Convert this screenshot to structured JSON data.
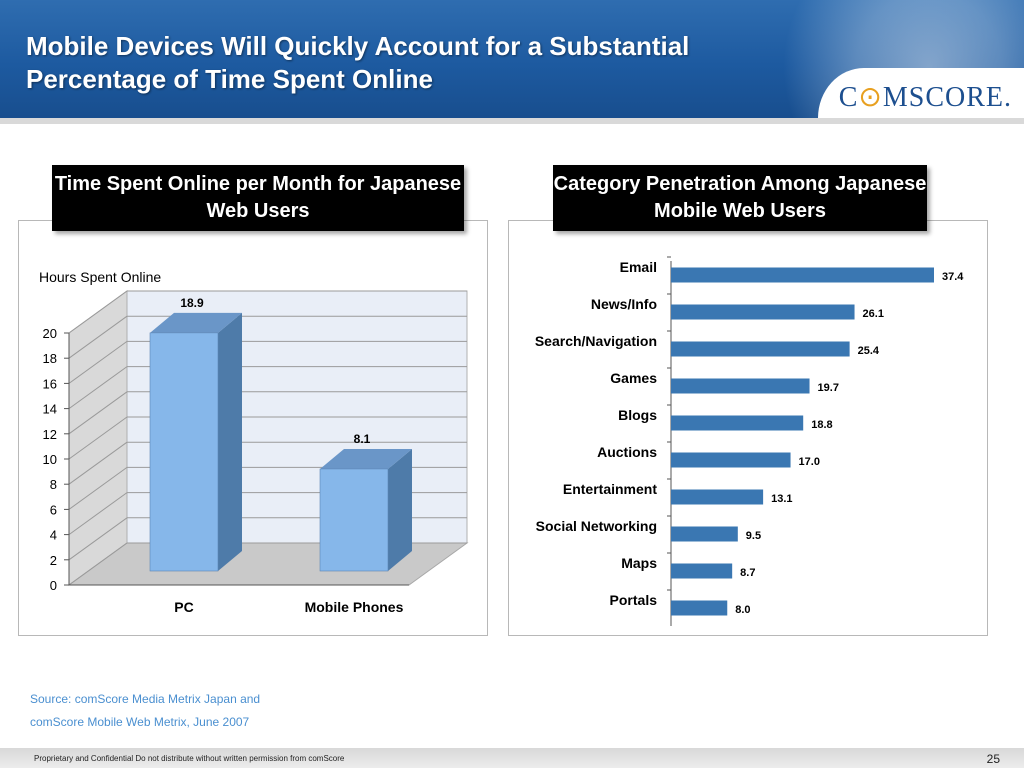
{
  "slide": {
    "title": "Mobile Devices Will Quickly Account for a Substantial Percentage of Time Spent Online",
    "logo": "comScore",
    "logo_letters": {
      "part1": "C",
      "mark": "⊙",
      "part2": "MSCORE",
      "suffix": "."
    },
    "left_banner": "Time Spent Online per Month for Japanese Web Users",
    "right_banner": "Category Penetration Among Japanese Mobile Web Users",
    "source_line1": "Source: comScore Media Metrix  Japan and",
    "source_line2": "comScore Mobile Web Metrix, June 2007",
    "footer": "Proprietary and Confidential Do not distribute without written permission from comScore",
    "page_number": "25"
  },
  "chart_data": [
    {
      "type": "bar",
      "style": "3d",
      "ylabel": "Hours Spent Online",
      "categories": [
        "PC",
        "Mobile Phones"
      ],
      "values": [
        18.9,
        8.1
      ],
      "value_labels": [
        "18.9",
        "8.1"
      ],
      "ylim": [
        0,
        20
      ],
      "yticks": [
        0,
        2,
        4,
        6,
        8,
        10,
        12,
        14,
        16,
        18,
        20
      ],
      "grid": true,
      "colors": {
        "front": "#86b7ea",
        "side": "#4e7ba9",
        "top": "#6a96c8",
        "wall": "#e9eef7",
        "floor": "#c9c9c9"
      }
    },
    {
      "type": "bar",
      "orientation": "horizontal",
      "categories": [
        "Email",
        "News/Info",
        "Search/Navigation",
        "Games",
        "Blogs",
        "Auctions",
        "Entertainment",
        "Social Networking",
        "Maps",
        "Portals"
      ],
      "values": [
        37.4,
        26.1,
        25.4,
        19.7,
        18.8,
        17.0,
        13.1,
        9.5,
        8.7,
        8.0
      ],
      "value_labels": [
        "37.4",
        "26.1",
        "25.4",
        "19.7",
        "18.8",
        "17.0",
        "13.1",
        "9.5",
        "8.7",
        "8.0"
      ],
      "xlim": [
        0,
        40
      ],
      "grid": false,
      "colors": {
        "bar": "#3a77b2"
      }
    }
  ]
}
